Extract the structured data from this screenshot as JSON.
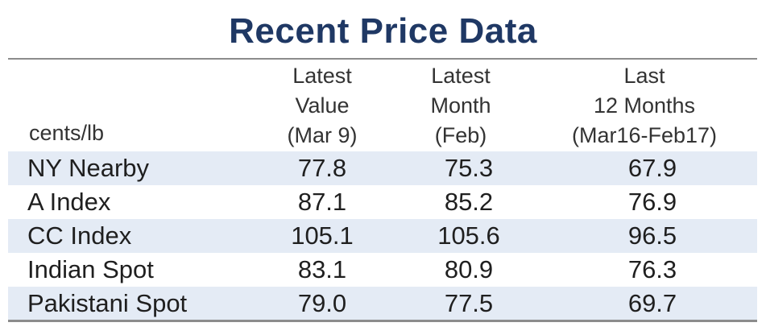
{
  "chart_data": {
    "type": "table",
    "title": "Recent Price Data",
    "unit_label": "cents/lb",
    "columns": [
      {
        "line1": "Latest",
        "line2": "Value",
        "line3": "(Mar 9)"
      },
      {
        "line1": "Latest",
        "line2": "Month",
        "line3": "(Feb)"
      },
      {
        "line1": "Last",
        "line2": "12 Months",
        "line3": "(Mar16-Feb17)"
      }
    ],
    "rows": [
      {
        "label": "NY Nearby",
        "values": [
          "77.8",
          "75.3",
          "67.9"
        ]
      },
      {
        "label": "A Index",
        "values": [
          "87.1",
          "85.2",
          "76.9"
        ]
      },
      {
        "label": "CC Index",
        "values": [
          "105.1",
          "105.6",
          "96.5"
        ]
      },
      {
        "label": "Indian Spot",
        "values": [
          "83.1",
          "80.9",
          "76.3"
        ]
      },
      {
        "label": "Pakistani Spot",
        "values": [
          "79.0",
          "77.5",
          "69.7"
        ]
      }
    ]
  },
  "colors": {
    "title": "#1f3864",
    "shade": "#e4ebf5",
    "rule": "#8c8c8c"
  }
}
